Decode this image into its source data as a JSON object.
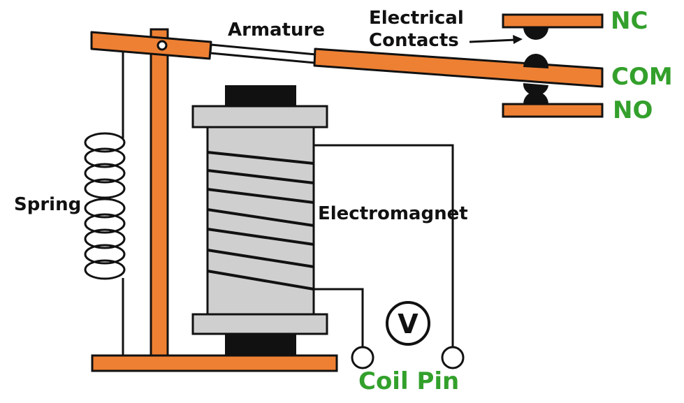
{
  "labels": {
    "armature": "Armature",
    "contacts_line1": "Electrical",
    "contacts_line2": "Contacts",
    "spring": "Spring",
    "electromagnet": "Electromagnet",
    "nc": "NC",
    "com": "COM",
    "no": "NO",
    "coil_pin": "Coil Pin",
    "voltmeter": "V"
  },
  "colors": {
    "orange": "#ee8033",
    "green": "#33a02c",
    "black": "#111111",
    "coil_gray": "#d0cfcf",
    "white": "#ffffff"
  }
}
